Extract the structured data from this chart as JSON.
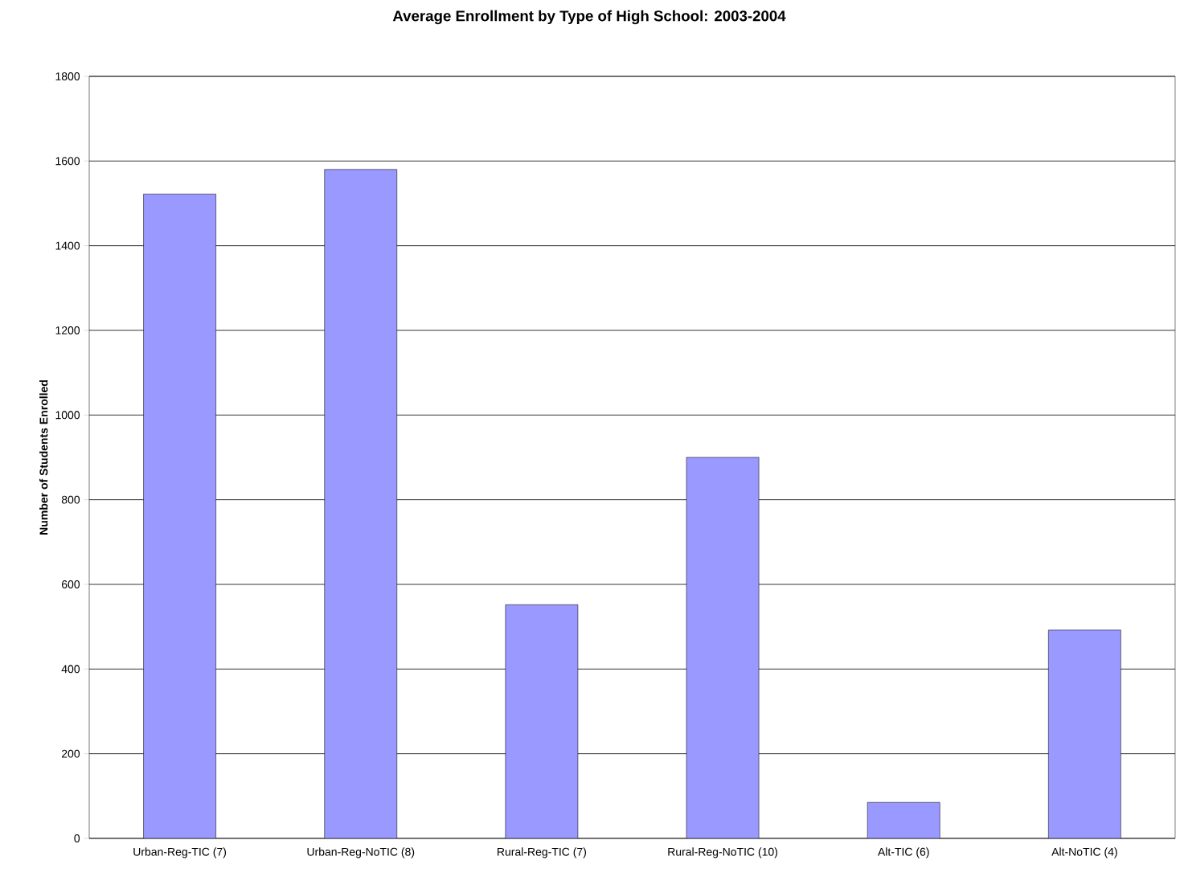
{
  "chart_data": {
    "type": "bar",
    "title": "Average Enrollment by Type of High School: 2003-2004",
    "ylabel": "Number of Students Enrolled",
    "categories": [
      "Urban-Reg-TIC (7)",
      "Urban-Reg-NoTIC (8)",
      "Rural-Reg-TIC (7)",
      "Rural-Reg-NoTIC (10)",
      "Alt-TIC (6)",
      "Alt-NoTIC (4)"
    ],
    "values": [
      1522,
      1580,
      552,
      900,
      85,
      492
    ],
    "color": "#9999ff",
    "ylim": [
      0,
      1800
    ],
    "yticks": [
      0,
      200,
      400,
      600,
      800,
      1000,
      1200,
      1400,
      1600,
      1800
    ],
    "grid": "y"
  }
}
